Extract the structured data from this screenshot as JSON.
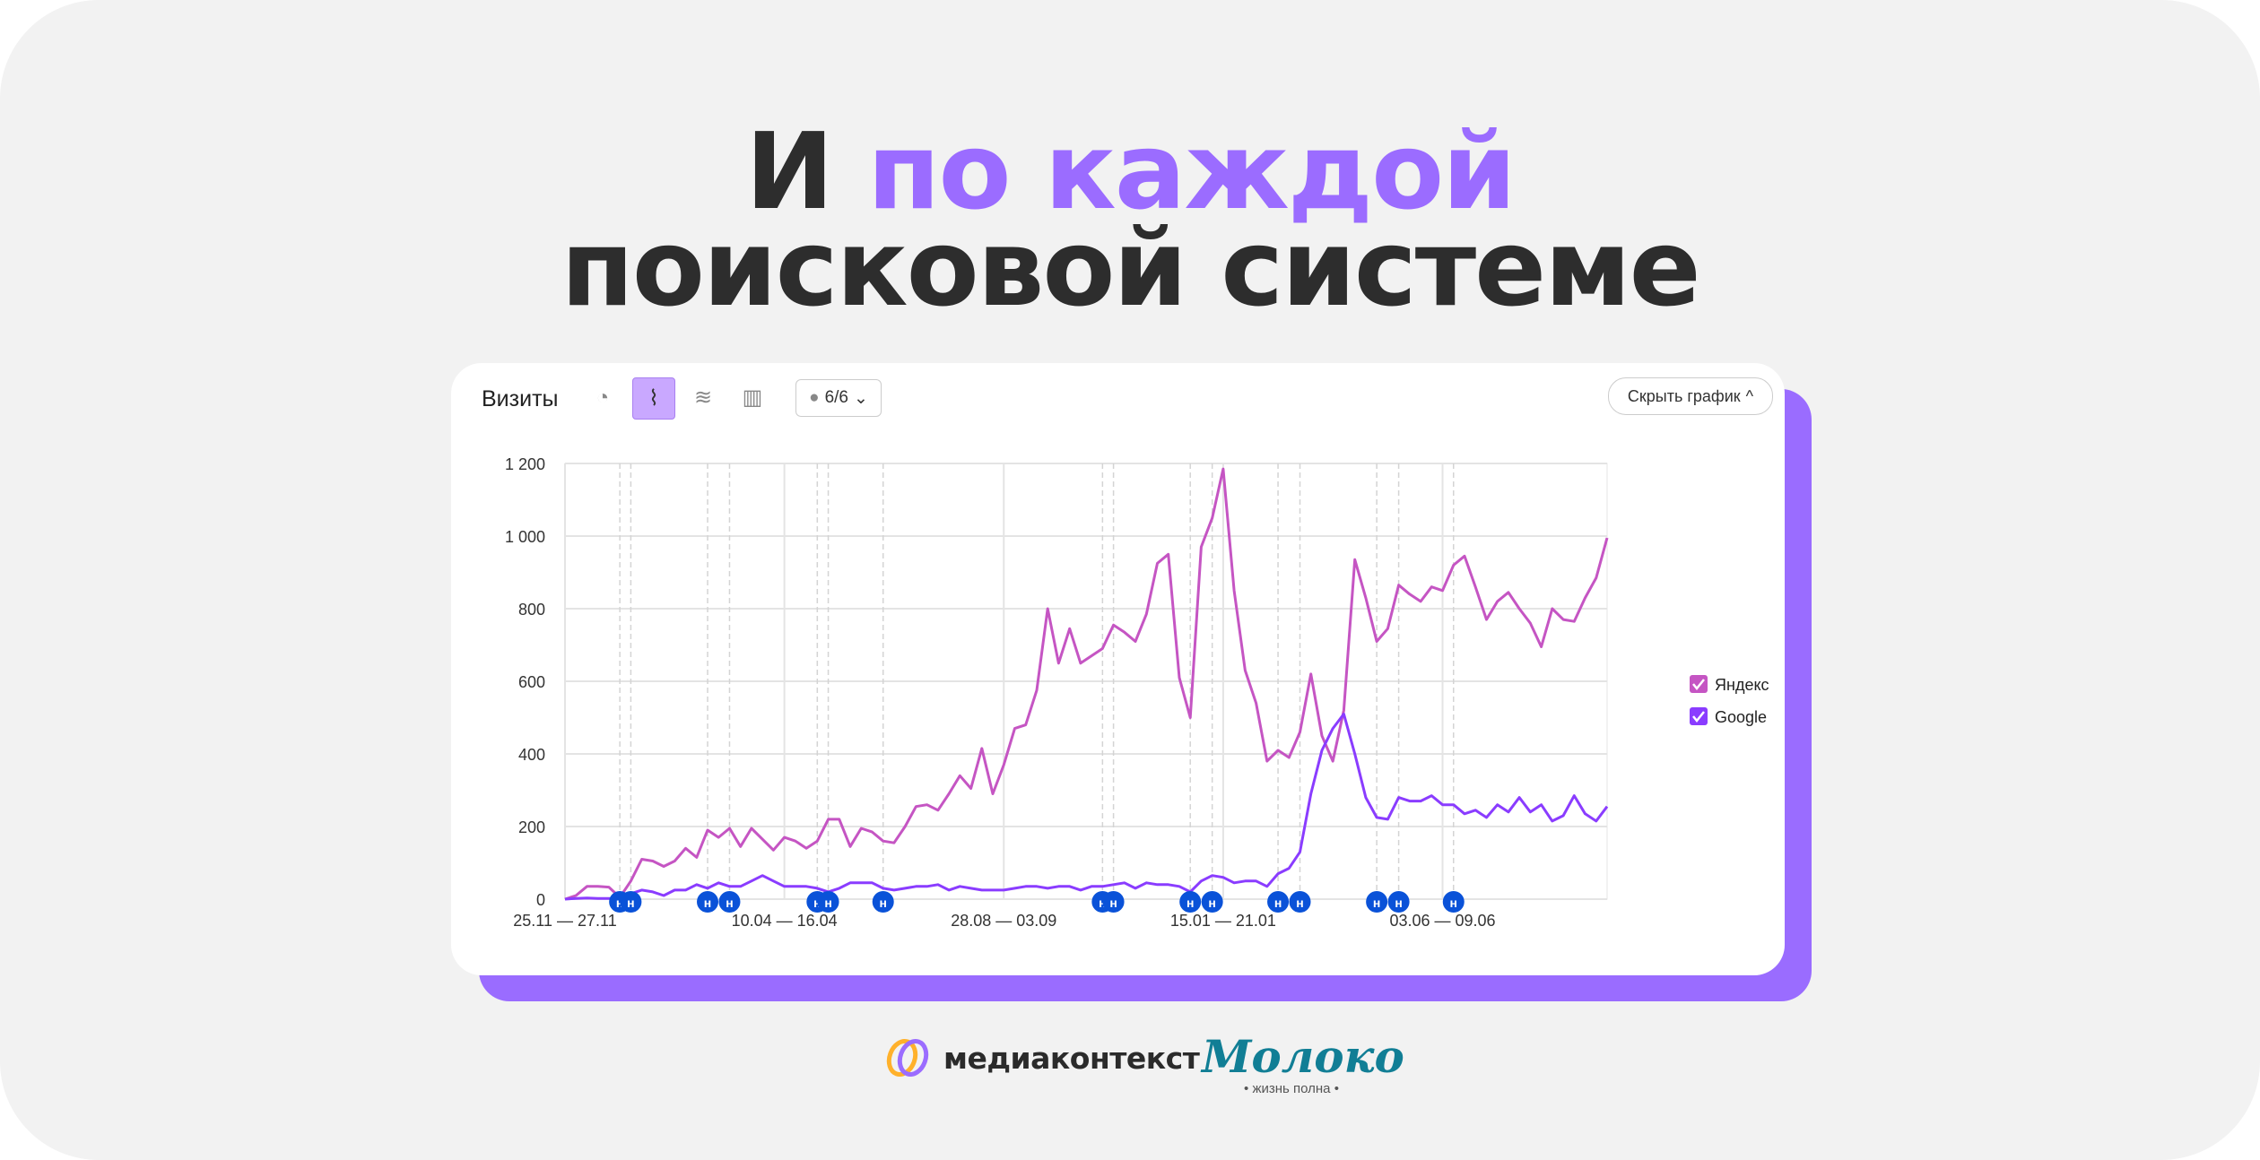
{
  "headline": {
    "line1_prefix": "И ",
    "line1_accent": "по каждой",
    "line2": "поисковой системе"
  },
  "colors": {
    "accent": "#9b6cff",
    "yandex": "#c555c3",
    "google": "#8a3cff",
    "note_marker": "#0a52d8",
    "logo_moloko": "#117e95"
  },
  "widget": {
    "title": "Визиты",
    "icons": [
      "pie-chart-icon",
      "line-chart-icon",
      "area-chart-icon",
      "bar-chart-icon"
    ],
    "active_icon": "line-chart-icon",
    "notes_filter": "6/6",
    "hide_button": "Скрыть график"
  },
  "chart_data": {
    "type": "line",
    "ylim": [
      0,
      1200
    ],
    "yticks": [
      "1 200",
      "1 000",
      "800",
      "600",
      "400",
      "200",
      "0"
    ],
    "ytick_values": [
      1200,
      1000,
      800,
      600,
      400,
      200,
      0
    ],
    "xtick_labels": [
      "25.11 — 27.11",
      "10.04 — 16.04",
      "28.08 — 03.09",
      "15.01 — 21.01",
      "03.06 — 09.06"
    ],
    "xtick_index": [
      0,
      20,
      40,
      60,
      80
    ],
    "grid": true,
    "legend_placement": "right",
    "note_label": "н",
    "note_index": [
      5,
      6,
      13,
      15,
      23,
      24,
      29,
      49,
      50,
      57,
      59,
      65,
      67,
      74,
      76,
      81
    ],
    "series": [
      {
        "name": "Яндекс",
        "values": [
          0,
          10,
          35,
          35,
          33,
          5,
          50,
          110,
          105,
          90,
          105,
          140,
          115,
          190,
          170,
          195,
          145,
          195,
          165,
          135,
          170,
          160,
          140,
          160,
          220,
          220,
          145,
          195,
          185,
          160,
          155,
          200,
          255,
          260,
          245,
          290,
          340,
          305,
          415,
          290,
          370,
          470,
          480,
          575,
          800,
          650,
          745,
          650,
          670,
          690,
          755,
          735,
          710,
          785,
          925,
          950,
          610,
          500,
          970,
          1050,
          1185,
          850,
          630,
          540,
          380,
          410,
          390,
          460,
          620,
          450,
          380,
          520,
          935,
          830,
          710,
          745,
          865,
          840,
          820,
          860,
          850,
          920,
          945,
          860,
          770,
          820,
          845,
          800,
          760,
          695,
          800,
          770,
          765,
          830,
          885,
          995
        ]
      },
      {
        "name": "Google",
        "values": [
          0,
          2,
          3,
          2,
          2,
          0,
          15,
          25,
          20,
          10,
          25,
          25,
          40,
          30,
          45,
          35,
          35,
          50,
          65,
          50,
          35,
          35,
          35,
          30,
          20,
          30,
          45,
          45,
          45,
          30,
          25,
          30,
          35,
          35,
          40,
          25,
          35,
          30,
          25,
          25,
          25,
          30,
          35,
          35,
          30,
          35,
          35,
          25,
          35,
          35,
          40,
          45,
          30,
          45,
          40,
          40,
          35,
          20,
          50,
          65,
          60,
          45,
          50,
          50,
          35,
          70,
          85,
          130,
          290,
          410,
          470,
          510,
          400,
          280,
          225,
          220,
          280,
          270,
          270,
          285,
          260,
          260,
          235,
          245,
          225,
          260,
          240,
          280,
          240,
          260,
          215,
          230,
          285,
          235,
          215,
          255
        ]
      }
    ]
  },
  "logos": {
    "mediacontext": "медиаконтекст",
    "moloko": "Молоко",
    "moloko_tagline": "• жизнь полна •"
  }
}
